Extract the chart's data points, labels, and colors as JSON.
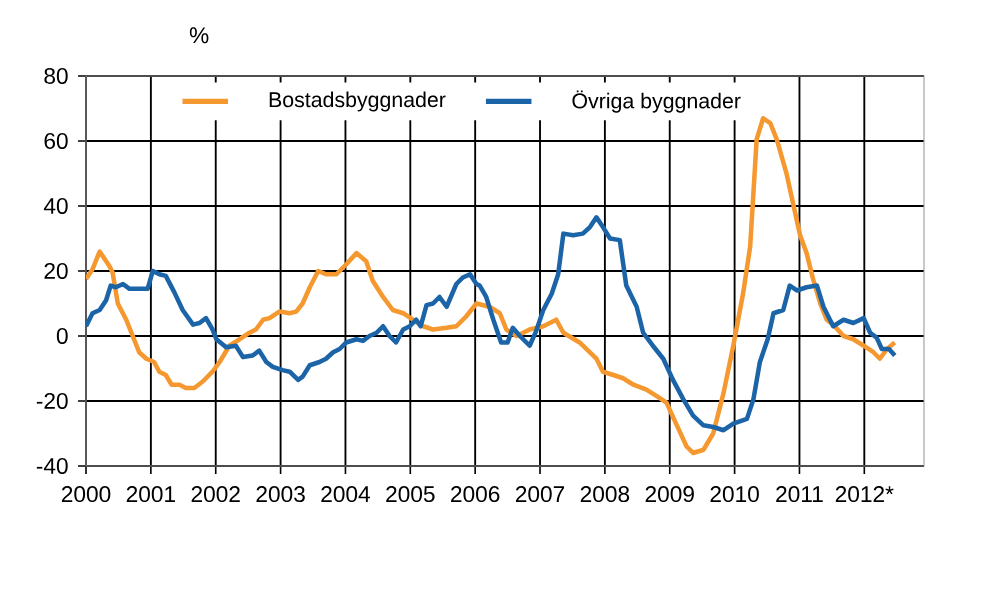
{
  "chart_data": {
    "type": "line",
    "ylabel": "%",
    "xlim": [
      2000,
      2012.92
    ],
    "xticks": [
      2000,
      2001,
      2002,
      2003,
      2004,
      2005,
      2006,
      2007,
      2008,
      2009,
      2010,
      2011,
      {
        "value": 2012,
        "label": "2012*"
      }
    ],
    "ylim": [
      -40,
      80
    ],
    "yticks": [
      -40,
      -20,
      0,
      20,
      40,
      60,
      80
    ],
    "grid": true,
    "legend": "top",
    "marker": "none",
    "line_style": "solid",
    "series": [
      {
        "name": "Bostadsbyggnader",
        "color": "#f5982f",
        "x": [
          2000.0,
          2000.1,
          2000.21,
          2000.36,
          2000.41,
          2000.49,
          2000.62,
          2000.72,
          2000.82,
          2000.93,
          2001.05,
          2001.13,
          2001.23,
          2001.32,
          2001.44,
          2001.54,
          2001.67,
          2001.8,
          2001.95,
          2002.06,
          2002.21,
          2002.37,
          2002.52,
          2002.62,
          2002.73,
          2002.83,
          2002.98,
          2003.14,
          2003.24,
          2003.34,
          2003.45,
          2003.58,
          2003.7,
          2003.86,
          2004.01,
          2004.17,
          2004.32,
          2004.42,
          2004.58,
          2004.73,
          2004.89,
          2005.04,
          2005.2,
          2005.35,
          2005.56,
          2005.71,
          2005.86,
          2006.02,
          2006.22,
          2006.38,
          2006.48,
          2006.64,
          2006.84,
          2007.05,
          2007.25,
          2007.36,
          2007.61,
          2007.87,
          2007.97,
          2008.13,
          2008.28,
          2008.44,
          2008.64,
          2008.8,
          2008.95,
          2009.11,
          2009.26,
          2009.36,
          2009.52,
          2009.67,
          2009.83,
          2009.98,
          2010.13,
          2010.24,
          2010.34,
          2010.44,
          2010.55,
          2010.65,
          2010.8,
          2010.91,
          2011.01,
          2011.11,
          2011.21,
          2011.32,
          2011.42,
          2011.52,
          2011.68,
          2011.83,
          2011.99,
          2012.14,
          2012.24,
          2012.35,
          2012.47
        ],
        "values": [
          17.5,
          20.5,
          26,
          21.5,
          19.5,
          10,
          5,
          0,
          -5,
          -7,
          -8,
          -11,
          -12,
          -15,
          -15,
          -16,
          -16,
          -14,
          -11,
          -8,
          -3,
          -1,
          1,
          2,
          5,
          5.5,
          7.5,
          7,
          7.5,
          10,
          15,
          20,
          19,
          19,
          22,
          25.5,
          23,
          17,
          12,
          8,
          7,
          5,
          3,
          2,
          2.5,
          3,
          6,
          10,
          9,
          7,
          2,
          0,
          2,
          3,
          5,
          1,
          -2,
          -7,
          -11,
          -12,
          -13,
          -15,
          -16.5,
          -18.5,
          -20.5,
          -27.5,
          -34,
          -36,
          -35,
          -30,
          -17.5,
          -3,
          13,
          27.5,
          60.5,
          67,
          65.5,
          60.5,
          50,
          40,
          31,
          25.5,
          17.5,
          10,
          5,
          3.5,
          0,
          -1,
          -3,
          -5,
          -7,
          -4,
          -2
        ]
      },
      {
        "name": "Övriga byggnader",
        "color": "#1c64a8",
        "x": [
          2000.0,
          2000.1,
          2000.21,
          2000.31,
          2000.38,
          2000.46,
          2000.57,
          2000.67,
          2000.82,
          2000.95,
          2001.03,
          2001.13,
          2001.23,
          2001.36,
          2001.49,
          2001.65,
          2001.75,
          2001.85,
          2001.95,
          2002.01,
          2002.16,
          2002.31,
          2002.42,
          2002.57,
          2002.67,
          2002.78,
          2002.88,
          2003.03,
          2003.14,
          2003.27,
          2003.34,
          2003.45,
          2003.6,
          2003.7,
          2003.81,
          2003.91,
          2004.01,
          2004.17,
          2004.27,
          2004.37,
          2004.48,
          2004.58,
          2004.68,
          2004.78,
          2004.89,
          2004.99,
          2005.09,
          2005.16,
          2005.25,
          2005.35,
          2005.45,
          2005.56,
          2005.71,
          2005.81,
          2005.92,
          2006.02,
          2006.07,
          2006.17,
          2006.28,
          2006.4,
          2006.5,
          2006.58,
          2006.69,
          2006.84,
          2006.94,
          2007.05,
          2007.18,
          2007.28,
          2007.36,
          2007.51,
          2007.66,
          2007.77,
          2007.87,
          2007.97,
          2008.08,
          2008.23,
          2008.33,
          2008.49,
          2008.59,
          2008.74,
          2008.9,
          2009.05,
          2009.21,
          2009.36,
          2009.52,
          2009.67,
          2009.83,
          2009.98,
          2010.19,
          2010.29,
          2010.39,
          2010.51,
          2010.6,
          2010.75,
          2010.85,
          2010.96,
          2011.11,
          2011.27,
          2011.37,
          2011.52,
          2011.68,
          2011.83,
          2011.99,
          2012.09,
          2012.19,
          2012.27,
          2012.38,
          2012.47
        ],
        "values": [
          3,
          7,
          8,
          11,
          15.5,
          15,
          16,
          14.5,
          14.5,
          14.5,
          20,
          19,
          18.5,
          13.5,
          8,
          3.5,
          4,
          5.5,
          2,
          -1,
          -3.5,
          -3,
          -6.5,
          -6,
          -4.5,
          -8,
          -9.5,
          -10.5,
          -11,
          -13.5,
          -12.5,
          -9,
          -8,
          -7,
          -5,
          -4,
          -2,
          -1,
          -1.5,
          0,
          1,
          3,
          0,
          -2,
          2,
          3,
          5,
          3,
          9.5,
          10,
          12,
          9,
          16,
          18,
          19,
          16,
          15.5,
          12,
          5,
          -2,
          -2,
          2.5,
          0,
          -3,
          1.5,
          8,
          13,
          19,
          31.5,
          31,
          31.5,
          33.5,
          36.5,
          33.5,
          30,
          29.5,
          15.5,
          9,
          1,
          -3,
          -7,
          -13.5,
          -19.5,
          -24.5,
          -27.5,
          -28,
          -29,
          -27,
          -25.5,
          -19.5,
          -8,
          -1,
          7,
          8,
          15.5,
          14,
          15,
          15.5,
          9,
          3,
          5,
          4,
          5.5,
          1,
          -0.5,
          -4,
          -4,
          -6
        ]
      }
    ]
  }
}
